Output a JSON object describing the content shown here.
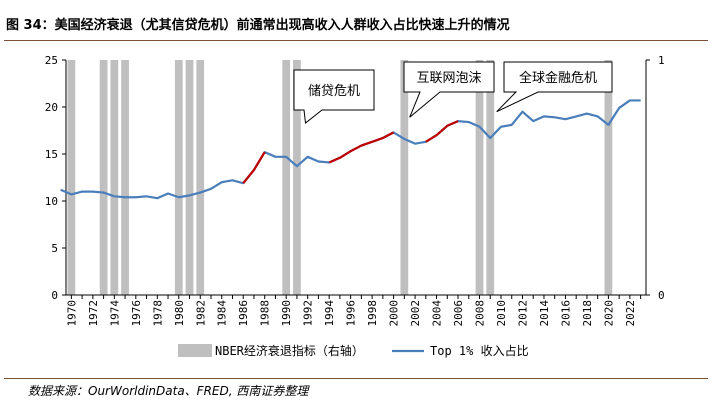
{
  "figure": {
    "title": "图 34：美国经济衰退（尤其信贷危机）前通常出现高收入人群收入占比快速上升的情况",
    "source": "数据来源：OurWorldinData、FRED, 西南证券整理"
  },
  "colors": {
    "line": "#4a7ebb",
    "highlight": "#c00000",
    "recession": "#bfbfbf",
    "rule": "#7b5138",
    "axis": "#000000"
  },
  "chart_data": {
    "type": "line",
    "title": "",
    "xlabel": "",
    "ylabel": "",
    "x_tick_labels": [
      "1970",
      "1972",
      "1974",
      "1976",
      "1978",
      "1980",
      "1982",
      "1984",
      "1986",
      "1988",
      "1990",
      "1992",
      "1994",
      "1996",
      "1998",
      "2000",
      "2002",
      "2004",
      "2006",
      "2008",
      "2010",
      "2012",
      "2014",
      "2016",
      "2018",
      "2020",
      "2022"
    ],
    "y_left": {
      "ticks": [
        0,
        5,
        10,
        15,
        20,
        25
      ],
      "ylim": [
        0,
        25
      ]
    },
    "y_right": {
      "ticks": [
        0,
        1
      ],
      "ylim": [
        0,
        1
      ]
    },
    "xlim": [
      1969.5,
      2023.5
    ],
    "grid": false,
    "legend_position": "bottom",
    "series": [
      {
        "name": "Top 1% 收入占比",
        "axis": "left",
        "x": [
          1969,
          1970,
          1971,
          1972,
          1973,
          1974,
          1975,
          1976,
          1977,
          1978,
          1979,
          1980,
          1981,
          1982,
          1983,
          1984,
          1985,
          1986,
          1987,
          1988,
          1989,
          1990,
          1991,
          1992,
          1993,
          1994,
          1995,
          1996,
          1997,
          1998,
          1999,
          2000,
          2001,
          2002,
          2003,
          2004,
          2005,
          2006,
          2007,
          2008,
          2009,
          2010,
          2011,
          2012,
          2013,
          2014,
          2015,
          2016,
          2017,
          2018,
          2019,
          2020,
          2021,
          2022,
          2023
        ],
        "y": [
          11.2,
          10.7,
          11.0,
          11.0,
          10.9,
          10.5,
          10.4,
          10.4,
          10.5,
          10.3,
          10.8,
          10.4,
          10.6,
          10.9,
          11.3,
          12.0,
          12.2,
          11.9,
          13.3,
          15.2,
          14.7,
          14.7,
          13.7,
          14.7,
          14.2,
          14.1,
          14.6,
          15.3,
          15.9,
          16.3,
          16.7,
          17.3,
          16.6,
          16.1,
          16.3,
          17.0,
          18.0,
          18.5,
          18.4,
          17.9,
          16.7,
          17.9,
          18.1,
          19.5,
          18.5,
          19.0,
          18.9,
          18.7,
          19.0,
          19.3,
          19.0,
          18.1,
          19.9,
          20.7,
          20.7
        ]
      },
      {
        "name": "NBER经济衰退指标（右轴）",
        "axis": "right",
        "type": "bar",
        "values": [
          {
            "x": 1970,
            "value": 1
          },
          {
            "x": 1973,
            "value": 1
          },
          {
            "x": 1974,
            "value": 1
          },
          {
            "x": 1975,
            "value": 1
          },
          {
            "x": 1980,
            "value": 1
          },
          {
            "x": 1981,
            "value": 1
          },
          {
            "x": 1982,
            "value": 1
          },
          {
            "x": 1990,
            "value": 1
          },
          {
            "x": 1991,
            "value": 1
          },
          {
            "x": 2001,
            "value": 1
          },
          {
            "x": 2008,
            "value": 1
          },
          {
            "x": 2009,
            "value": 1
          },
          {
            "x": 2020,
            "value": 1
          }
        ]
      }
    ],
    "highlight_segments": [
      {
        "from": 1986,
        "to": 1988
      },
      {
        "from": 1994,
        "to": 2000
      },
      {
        "from": 2003,
        "to": 2006
      }
    ],
    "annotations": [
      {
        "text": "储贷危机",
        "target_x": 1991.8,
        "target_y": 18.3
      },
      {
        "text": "互联网泡沫",
        "target_x": 2001.5,
        "target_y": 18.9
      },
      {
        "text": "全球金融危机",
        "target_x": 2009.6,
        "target_y": 19.5
      }
    ],
    "legend": [
      {
        "label": "NBER经济衰退指标（右轴）",
        "kind": "bar"
      },
      {
        "label": "Top 1% 收入占比",
        "kind": "line"
      }
    ]
  }
}
